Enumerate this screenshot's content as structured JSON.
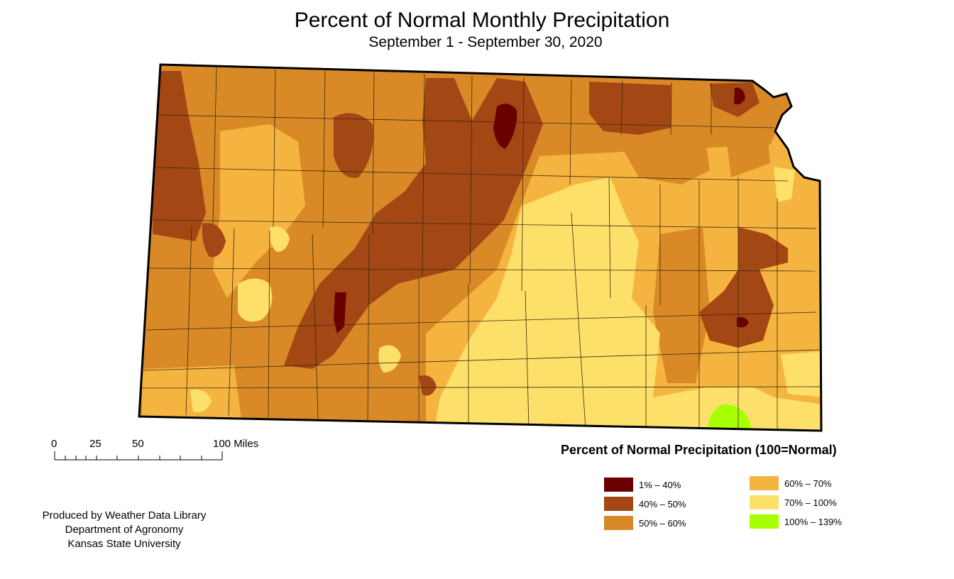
{
  "map": {
    "title": "Percent of Normal Monthly Precipitation",
    "subtitle": "September 1 - September 30, 2020"
  },
  "scale_bar": {
    "labels": [
      "0",
      "25",
      "50",
      "100 Miles"
    ]
  },
  "legend": {
    "title": "Percent of Normal Precipitation (100=Normal)",
    "classes": [
      {
        "label": "1% – 40%",
        "color": "#6b0000"
      },
      {
        "label": "40% – 50%",
        "color": "#a34714"
      },
      {
        "label": "50% – 60%",
        "color": "#d98a26"
      },
      {
        "label": "60% – 70%",
        "color": "#f5b440"
      },
      {
        "label": "70% – 100%",
        "color": "#fde06a"
      },
      {
        "label": "100% – 139%",
        "color": "#a8ff00"
      }
    ]
  },
  "credit": {
    "line1": "Produced by Weather Data Library",
    "line2": "Department of Agronomy",
    "line3": "Kansas State University"
  }
}
